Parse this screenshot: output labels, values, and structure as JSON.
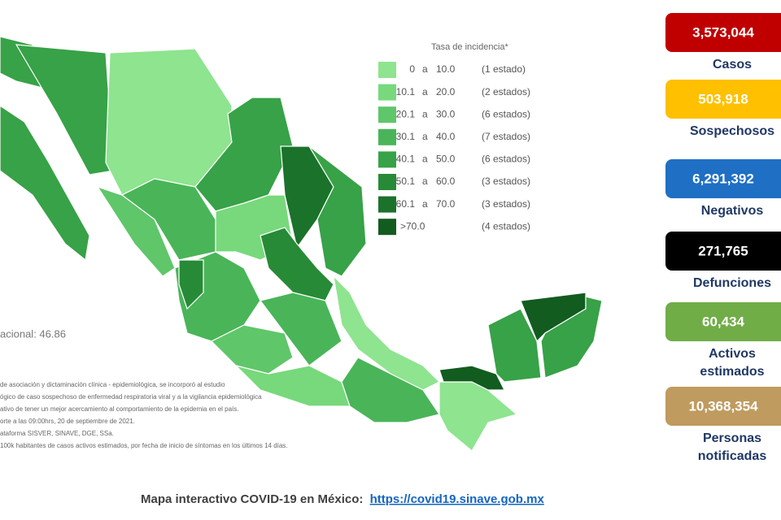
{
  "legend": {
    "title": "Tasa de incidencia*",
    "separator": "a",
    "rows": [
      {
        "min": "0",
        "max": "10.0",
        "count": "(1 estado)",
        "color": "#8ee48f"
      },
      {
        "min": "10.1",
        "max": "20.0",
        "count": "(2 estados)",
        "color": "#77d97b"
      },
      {
        "min": "20.1",
        "max": "30.0",
        "count": "(6 estados)",
        "color": "#5fc66a"
      },
      {
        "min": "30.1",
        "max": "40.0",
        "count": "(7 estados)",
        "color": "#49b558"
      },
      {
        "min": "40.1",
        "max": "50.0",
        "count": "(6 estados)",
        "color": "#37a247"
      },
      {
        "min": "50.1",
        "max": "60.0",
        "count": "(3 estados)",
        "color": "#278a37"
      },
      {
        "min": "60.1",
        "max": "70.0",
        "count": "(3 estados)",
        "color": "#1b722b"
      },
      {
        "min": ">70.0",
        "count": "(4 estados)",
        "color": "#125c20"
      }
    ]
  },
  "national_rate": "acional: 46.86",
  "notes": [
    "de asociación y dictaminación clínica - epidemiológica, se incorporó al estudio",
    "ógico de caso sospechoso de enfermedad respiratoria viral y a la vigilancia epidemiológica",
    "ativo de tener un mejor acercamiento al comportamiento de la epidemia en el país.",
    "orte a las 09:00hrs, 20 de septiembre de 2021.",
    "ataforma SISVER, SINAVE, DGE, SSa.",
    "100k habitantes de casos activos estimados, por fecha de inicio de síntomas en los últimos 14 días."
  ],
  "stats": [
    {
      "value": "3,573,044",
      "label": [
        "Casos"
      ],
      "color": "#c00000"
    },
    {
      "value": "503,918",
      "label": [
        "Sospechosos"
      ],
      "color": "#ffc000"
    },
    {
      "value": "6,291,392",
      "label": [
        "Negativos"
      ],
      "color": "#1f6fc5"
    },
    {
      "value": "271,765",
      "label": [
        "Defunciones"
      ],
      "color": "#000000"
    },
    {
      "value": "60,434",
      "label": [
        "Activos",
        "estimados"
      ],
      "color": "#70ad47"
    },
    {
      "value": "10,368,354",
      "label": [
        "Personas",
        "notificadas"
      ],
      "color": "#bf9b5f"
    }
  ],
  "footer": {
    "text": "Mapa interactivo COVID-19 en México:",
    "link": "https://covid19.sinave.gob.mx"
  }
}
